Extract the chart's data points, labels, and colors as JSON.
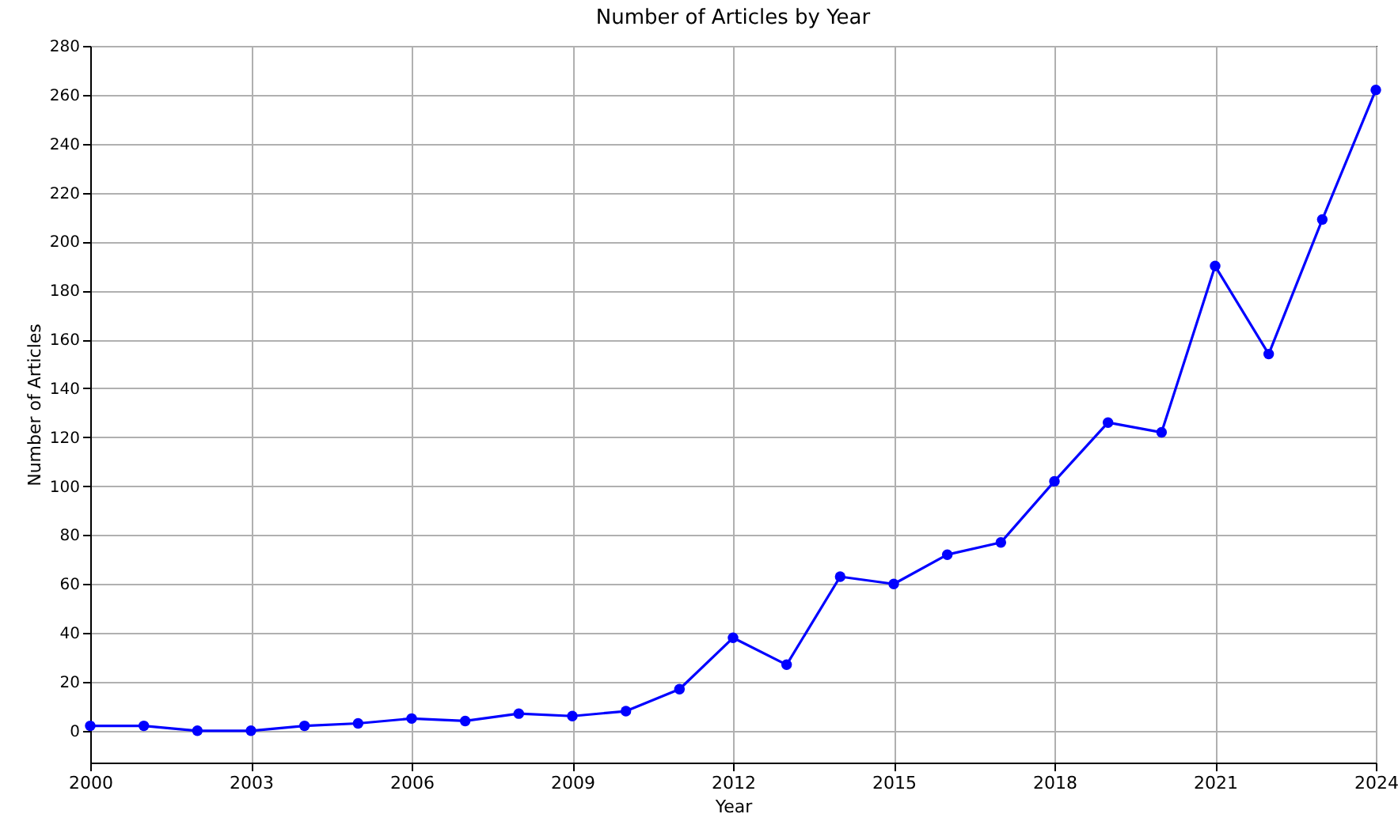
{
  "chart_data": {
    "type": "line",
    "title": "Number of Articles by Year",
    "xlabel": "Year",
    "ylabel": "Number of Articles",
    "x": [
      2000,
      2001,
      2002,
      2003,
      2004,
      2005,
      2006,
      2007,
      2008,
      2009,
      2010,
      2011,
      2012,
      2013,
      2014,
      2015,
      2016,
      2017,
      2018,
      2019,
      2020,
      2021,
      2022,
      2023,
      2024
    ],
    "series": [
      {
        "color": "#0000ff",
        "values": [
          2,
          2,
          0,
          0,
          2,
          3,
          5,
          4,
          7,
          6,
          8,
          17,
          38,
          27,
          63,
          60,
          72,
          77,
          102,
          126,
          122,
          190,
          154,
          209,
          262
        ]
      }
    ],
    "xlim": [
      2000,
      2024
    ],
    "xticks": [
      2000,
      2003,
      2006,
      2009,
      2012,
      2015,
      2018,
      2021,
      2024
    ],
    "ylim": [
      -13,
      280
    ],
    "yticks": [
      0,
      20,
      40,
      60,
      80,
      100,
      120,
      140,
      160,
      180,
      200,
      220,
      240,
      260,
      280
    ],
    "grid": true,
    "marker": "circle",
    "line_style": "solid"
  }
}
